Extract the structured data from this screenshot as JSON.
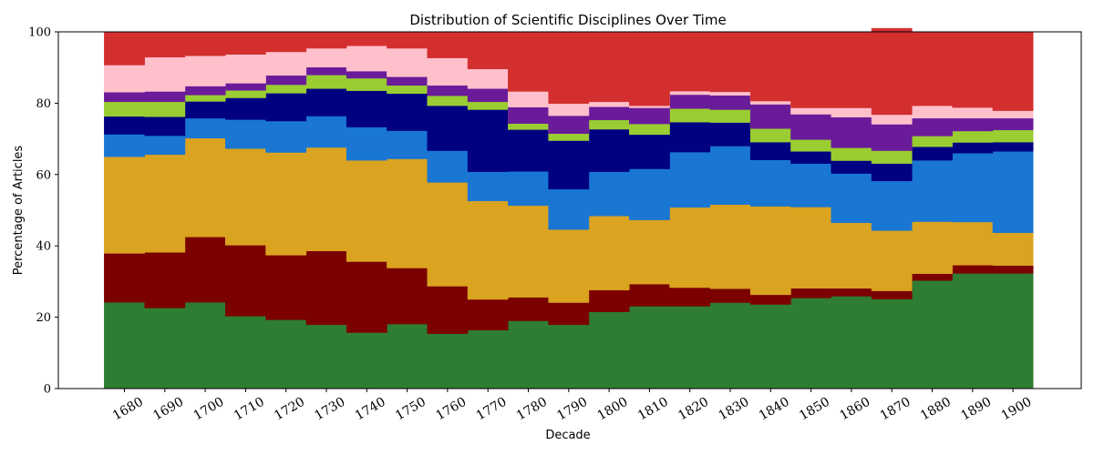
{
  "chart_data": {
    "type": "area",
    "style": "stacked-step",
    "title": "Distribution of Scientific Disciplines Over Time",
    "xlabel": "Decade",
    "ylabel": "Percentage of Articles",
    "ylim": [
      0,
      100
    ],
    "yticks": [
      "0",
      "20",
      "40",
      "60",
      "80",
      "100"
    ],
    "categories": [
      "1680",
      "1690",
      "1700",
      "1710",
      "1720",
      "1730",
      "1740",
      "1750",
      "1760",
      "1770",
      "1780",
      "1790",
      "1800",
      "1810",
      "1820",
      "1830",
      "1840",
      "1850",
      "1860",
      "1870",
      "1880",
      "1890",
      "1900"
    ],
    "grid": false,
    "legend": "none",
    "series": [
      {
        "color": "#2e7d32",
        "values": [
          24.2,
          22.6,
          24.2,
          20.3,
          19.3,
          17.9,
          15.7,
          18.1,
          15.4,
          16.4,
          19.0,
          17.9,
          21.5,
          23.1,
          23.1,
          24.1,
          23.6,
          25.4,
          25.9,
          25.1,
          30.3,
          32.3,
          32.3
        ]
      },
      {
        "color": "#7b0000",
        "values": [
          13.7,
          15.6,
          18.3,
          19.9,
          18.1,
          20.7,
          19.9,
          15.7,
          13.3,
          8.6,
          6.6,
          6.2,
          6.1,
          6.2,
          5.2,
          3.9,
          2.7,
          2.7,
          2.2,
          2.3,
          1.9,
          2.3,
          2.2
        ]
      },
      {
        "color": "#daa320",
        "values": [
          27.1,
          27.4,
          27.7,
          27.1,
          28.8,
          29.0,
          28.4,
          30.6,
          29.1,
          27.6,
          25.7,
          20.5,
          20.8,
          18.0,
          22.5,
          23.6,
          24.8,
          22.8,
          18.4,
          16.9,
          14.6,
          12.1,
          9.2
        ]
      },
      {
        "color": "#1976d2",
        "values": [
          6.3,
          5.3,
          5.6,
          8.1,
          8.8,
          8.8,
          9.3,
          7.9,
          8.9,
          8.2,
          9.6,
          11.3,
          12.4,
          14.3,
          15.5,
          16.4,
          13.0,
          12.2,
          13.8,
          13.9,
          17.2,
          19.3,
          22.8
        ]
      },
      {
        "color": "#000080",
        "values": [
          5.0,
          5.3,
          4.7,
          6.1,
          7.8,
          7.7,
          10.2,
          10.4,
          12.6,
          17.4,
          11.7,
          13.6,
          11.9,
          9.6,
          8.4,
          6.6,
          5.0,
          3.4,
          3.6,
          4.9,
          3.8,
          3.0,
          2.6
        ]
      },
      {
        "color": "#9acd32",
        "values": [
          4.1,
          4.2,
          1.8,
          2.1,
          2.4,
          3.8,
          3.5,
          2.3,
          2.8,
          2.2,
          1.7,
          2.0,
          2.6,
          3.0,
          3.8,
          3.6,
          3.8,
          3.3,
          3.6,
          3.6,
          3.0,
          3.2,
          3.4
        ]
      },
      {
        "color": "#6a1b9a",
        "values": [
          2.7,
          2.9,
          2.5,
          2.0,
          2.6,
          2.2,
          2.0,
          2.4,
          2.9,
          3.7,
          4.6,
          5.0,
          3.7,
          4.5,
          3.9,
          4.0,
          6.8,
          7.1,
          8.6,
          7.4,
          5.0,
          3.6,
          3.3
        ]
      },
      {
        "color": "#ffc0cb",
        "values": [
          7.6,
          9.6,
          8.5,
          8.1,
          6.6,
          5.3,
          7.1,
          8.0,
          7.7,
          5.5,
          4.4,
          3.4,
          1.4,
          0.6,
          1.0,
          1.0,
          0.9,
          1.8,
          2.6,
          2.7,
          3.5,
          3.0,
          2.1
        ]
      },
      {
        "color": "#d32f2f",
        "values": [
          9.3,
          7.1,
          6.7,
          6.3,
          5.6,
          4.6,
          3.9,
          4.6,
          7.3,
          10.4,
          16.7,
          20.1,
          19.6,
          20.7,
          16.6,
          16.8,
          19.4,
          21.3,
          21.3,
          24.2,
          20.7,
          21.2,
          22.1
        ]
      }
    ]
  }
}
